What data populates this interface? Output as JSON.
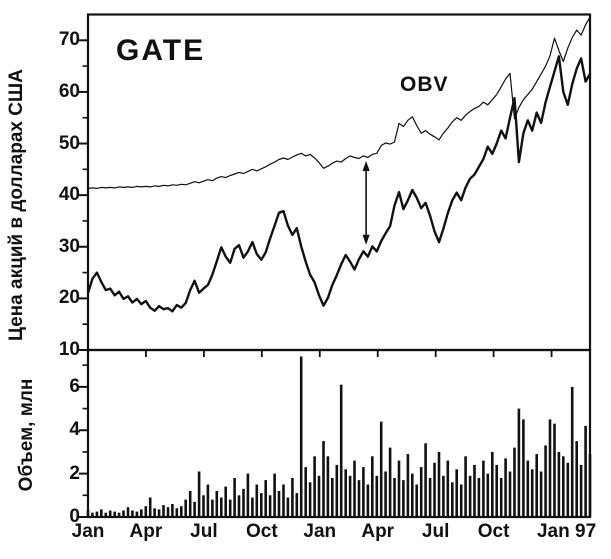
{
  "labels": {
    "title": "GATE",
    "obv": "OBV"
  },
  "colors": {
    "ink": "#111111",
    "background": "#ffffff"
  },
  "chart_data": {
    "type": "line",
    "title": "GATE",
    "legend_position": "none",
    "grid": false,
    "x_unit": "weeks since Jan 1995",
    "weeks_total": 113,
    "x_tick_labels": [
      "Jan",
      "Apr",
      "Jul",
      "Oct",
      "Jan",
      "Apr",
      "Jul",
      "Oct",
      "Jan 97"
    ],
    "x_tick_weeks": [
      0,
      13.04,
      26.09,
      39.13,
      52.17,
      65.22,
      78.26,
      91.3,
      104.35
    ],
    "top_panel": {
      "ylabel": "Цена акций в долларах США",
      "ylim": [
        10,
        75
      ],
      "yticks": [
        10,
        20,
        30,
        40,
        50,
        60,
        70
      ],
      "yticks_minor": [
        15,
        25,
        35,
        45,
        55,
        65
      ],
      "series": [
        {
          "name": "OBV",
          "style": "thin",
          "values": [
            41.3,
            41.4,
            41.3,
            41.5,
            41.4,
            41.5,
            41.4,
            41.6,
            41.5,
            41.6,
            41.5,
            41.7,
            41.6,
            41.7,
            41.6,
            41.8,
            41.7,
            41.9,
            41.8,
            42.0,
            41.9,
            42.1,
            42.0,
            42.3,
            42.6,
            42.4,
            42.7,
            43.0,
            42.8,
            43.3,
            43.6,
            43.4,
            43.8,
            44.1,
            44.4,
            44.2,
            44.6,
            45.0,
            44.7,
            45.1,
            45.5,
            46.0,
            46.4,
            46.9,
            47.2,
            46.9,
            47.4,
            47.8,
            48.1,
            47.6,
            47.9,
            47.2,
            46.3,
            45.2,
            45.6,
            46.2,
            46.6,
            46.4,
            47.1,
            47.6,
            47.3,
            47.1,
            47.6,
            47.3,
            47.9,
            48.1,
            49.6,
            50.1,
            49.9,
            50.3,
            53.9,
            53.3,
            54.5,
            55.2,
            53.5,
            52.0,
            52.5,
            51.8,
            51.3,
            50.7,
            52.0,
            53.0,
            54.2,
            55.0,
            54.5,
            55.5,
            56.2,
            56.8,
            57.2,
            58.0,
            57.5,
            58.5,
            59.5,
            61.0,
            62.5,
            63.6,
            54.8,
            57.0,
            58.5,
            59.5,
            60.5,
            62.0,
            63.5,
            65.0,
            67.0,
            70.4,
            68.0,
            65.9,
            68.5,
            70.5,
            72.0,
            71.0,
            73.0,
            74.5
          ]
        },
        {
          "name": "Цена акций GATE",
          "style": "thick",
          "values": [
            21.0,
            23.8,
            25.0,
            23.2,
            21.6,
            21.9,
            20.6,
            21.3,
            19.9,
            20.4,
            19.2,
            19.9,
            18.9,
            19.5,
            18.2,
            17.6,
            18.5,
            17.9,
            18.1,
            17.5,
            18.7,
            18.2,
            19.1,
            21.6,
            23.4,
            21.1,
            21.9,
            22.6,
            24.6,
            27.2,
            29.9,
            28.1,
            26.9,
            29.6,
            30.3,
            27.9,
            29.1,
            30.9,
            28.6,
            27.5,
            28.9,
            31.6,
            34.1,
            36.6,
            36.9,
            34.1,
            32.3,
            33.6,
            30.1,
            27.1,
            24.6,
            23.1,
            20.6,
            18.6,
            20.1,
            22.6,
            24.5,
            26.6,
            28.4,
            27.1,
            25.6,
            27.6,
            29.1,
            28.1,
            30.1,
            29.1,
            31.1,
            32.6,
            34.0,
            38.0,
            40.6,
            37.3,
            39.0,
            41.0,
            39.5,
            37.5,
            38.5,
            36.0,
            33.0,
            30.9,
            33.5,
            36.5,
            39.0,
            40.5,
            39.0,
            41.5,
            43.2,
            44.0,
            45.5,
            47.0,
            49.4,
            48.0,
            50.0,
            52.5,
            51.0,
            55.0,
            58.8,
            46.4,
            52.0,
            54.5,
            52.5,
            56.0,
            54.0,
            58.0,
            61.0,
            64.0,
            66.9,
            60.0,
            57.5,
            61.5,
            64.5,
            66.5,
            62.0,
            63.5
          ]
        }
      ]
    },
    "bottom_panel": {
      "type": "bar",
      "ylabel": "Объем, млн",
      "ylim": [
        0,
        7.7
      ],
      "yticks": [
        0,
        2,
        4,
        6
      ],
      "yticks_minor": [
        1,
        3,
        5,
        7
      ],
      "values": [
        0.3,
        0.2,
        0.25,
        0.35,
        0.2,
        0.3,
        0.25,
        0.2,
        0.3,
        0.45,
        0.3,
        0.25,
        0.35,
        0.5,
        0.9,
        0.4,
        0.35,
        0.55,
        0.45,
        0.6,
        0.4,
        0.5,
        0.8,
        1.2,
        0.7,
        2.1,
        1.0,
        1.5,
        0.8,
        1.2,
        0.9,
        1.4,
        0.8,
        1.8,
        1.0,
        1.3,
        2.0,
        0.9,
        1.5,
        1.1,
        1.7,
        1.0,
        2.0,
        1.2,
        1.5,
        0.9,
        1.8,
        1.1,
        7.4,
        2.3,
        1.6,
        2.8,
        1.9,
        3.5,
        2.8,
        1.8,
        2.4,
        6.1,
        2.2,
        1.9,
        2.6,
        1.7,
        2.3,
        1.5,
        2.8,
        1.9,
        4.4,
        2.1,
        3.2,
        1.8,
        2.6,
        1.7,
        2.9,
        2.0,
        1.5,
        2.3,
        3.4,
        1.8,
        2.5,
        3.0,
        1.9,
        2.6,
        1.6,
        2.2,
        1.5,
        2.8,
        1.9,
        2.4,
        1.8,
        2.6,
        2.0,
        3.0,
        2.4,
        1.8,
        2.7,
        2.1,
        3.2,
        5.0,
        4.5,
        2.6,
        2.2,
        2.9,
        2.1,
        3.3,
        4.5,
        4.3,
        3.0,
        2.8,
        2.5,
        6.0,
        3.5,
        2.4,
        4.2,
        2.9
      ]
    },
    "annotation_arrow": {
      "style": "double-headed vertical",
      "week": 62.6,
      "from_value": 30,
      "to_value": 47
    }
  }
}
